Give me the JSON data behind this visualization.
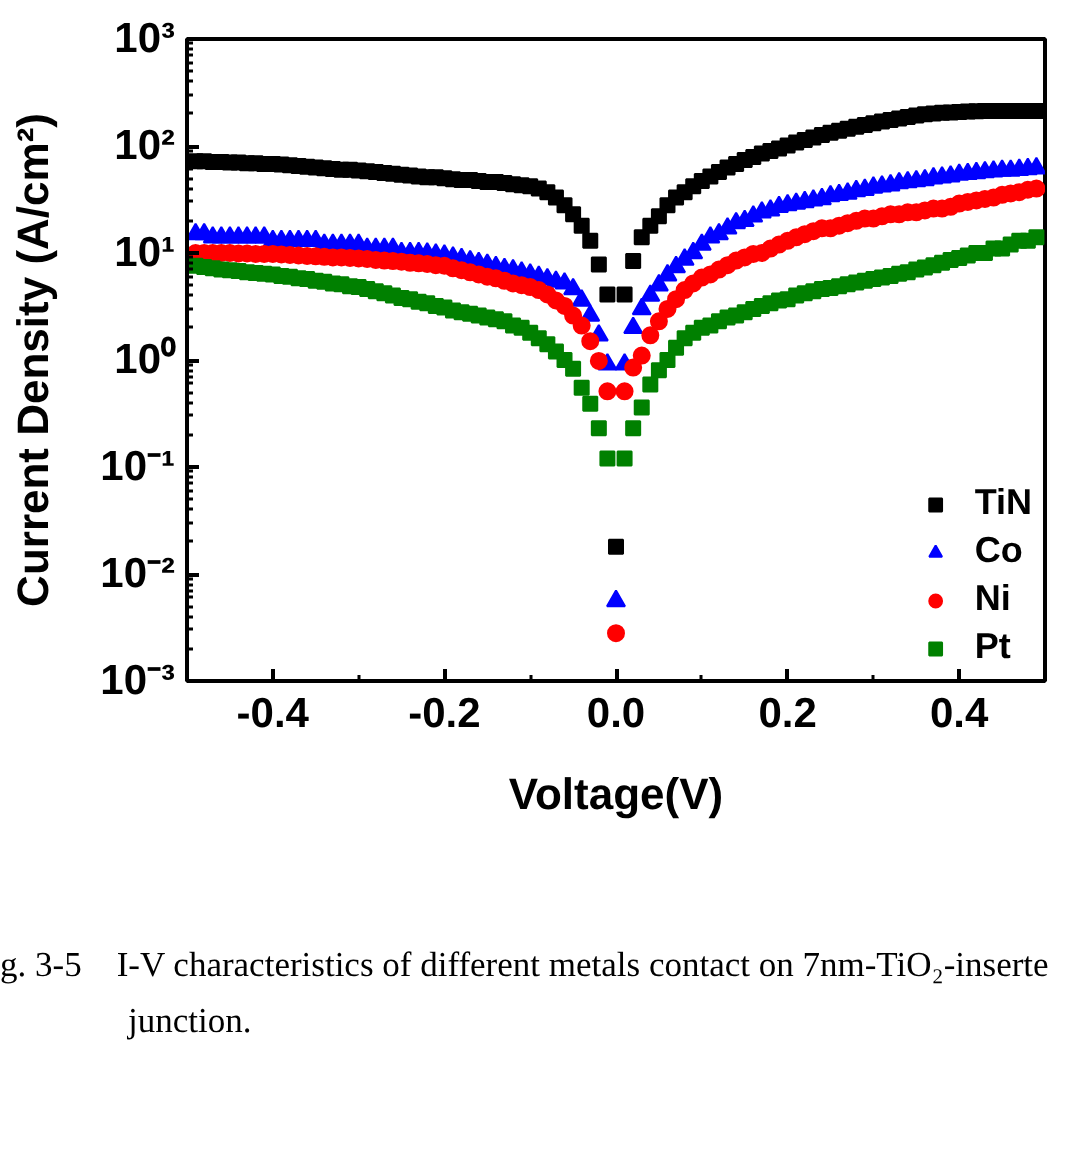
{
  "chart_data": {
    "type": "scatter",
    "xlabel": "Voltage(V)",
    "ylabel": "Current Density (A/cm²)",
    "xlim": [
      -0.5,
      0.5
    ],
    "xticks": [
      -0.4,
      -0.2,
      {
        "value": 0,
        "label": "0.0"
      },
      0.2,
      0.4
    ],
    "ylim": [
      0.001,
      1000
    ],
    "yticks": [
      {
        "value": 0.001,
        "label": "10⁻³"
      },
      {
        "value": 0.01,
        "label": "10⁻²"
      },
      {
        "value": 0.1,
        "label": "10⁻¹"
      },
      {
        "value": 1,
        "label": "10⁰"
      },
      {
        "value": 10,
        "label": "10¹"
      },
      {
        "value": 100,
        "label": "10²"
      },
      {
        "value": 1000,
        "label": "10³"
      }
    ],
    "log": "y",
    "legend": "bottom right",
    "x": [
      -0.49,
      -0.48,
      -0.47,
      -0.46,
      -0.45,
      -0.44,
      -0.43,
      -0.42,
      -0.41,
      -0.4,
      -0.39,
      -0.38,
      -0.37,
      -0.36,
      -0.35,
      -0.34,
      -0.33,
      -0.32,
      -0.31,
      -0.3,
      -0.29,
      -0.28,
      -0.27,
      -0.26,
      -0.25,
      -0.24,
      -0.23,
      -0.22,
      -0.21,
      -0.2,
      -0.19,
      -0.18,
      -0.17,
      -0.16,
      -0.15,
      -0.14,
      -0.13,
      -0.12,
      -0.11,
      -0.1,
      -0.09,
      -0.08,
      -0.07,
      -0.06,
      -0.05,
      -0.04,
      -0.03,
      -0.02,
      -0.01,
      0,
      0.01,
      0.02,
      0.03,
      0.04,
      0.05,
      0.06,
      0.07,
      0.08,
      0.09,
      0.1,
      0.11,
      0.12,
      0.13,
      0.14,
      0.15,
      0.16,
      0.17,
      0.18,
      0.19,
      0.2,
      0.21,
      0.22,
      0.23,
      0.24,
      0.25,
      0.26,
      0.27,
      0.28,
      0.29,
      0.3,
      0.31,
      0.32,
      0.33,
      0.34,
      0.35,
      0.36,
      0.37,
      0.38,
      0.39,
      0.4,
      0.41,
      0.42,
      0.43,
      0.44,
      0.45,
      0.46,
      0.47,
      0.48,
      0.49
    ],
    "series": [
      {
        "name": "TiN",
        "color": "#000000",
        "marker": "square",
        "values": [
          72,
          72,
          71,
          71,
          70,
          70,
          69,
          69,
          68,
          68,
          67,
          66,
          65,
          64,
          63,
          62,
          61,
          60,
          60,
          59,
          58,
          57,
          56,
          55,
          54,
          53,
          52,
          51,
          51,
          50,
          49,
          48,
          48,
          47,
          46,
          46,
          45,
          44,
          43,
          42,
          40,
          37,
          33,
          28,
          23,
          18,
          13,
          7.8,
          4.1,
          0.018,
          4.1,
          8.4,
          14,
          18,
          22,
          28,
          33,
          37,
          42,
          47,
          52,
          57,
          63,
          68,
          74,
          79,
          85,
          90,
          95,
          101,
          108,
          114,
          120,
          127,
          133,
          139,
          145,
          151,
          157,
          163,
          169,
          175,
          181,
          187,
          193,
          198,
          201,
          204,
          206,
          208,
          210,
          211,
          212,
          212,
          212,
          212,
          212,
          212,
          212
        ]
      },
      {
        "name": "Co",
        "color": "#0000ff",
        "marker": "triangle",
        "values": [
          15,
          15,
          14,
          14,
          14,
          14,
          14,
          14,
          14,
          13,
          13,
          13,
          13,
          13,
          13,
          12,
          12,
          12,
          12,
          12,
          11,
          11,
          11,
          11,
          10,
          10,
          10,
          9.9,
          9.7,
          9.5,
          9.1,
          8.8,
          8.4,
          8.1,
          7.8,
          7.4,
          7.1,
          6.9,
          6.6,
          6.3,
          6.0,
          5.7,
          5.4,
          5.2,
          4.6,
          3.6,
          2.6,
          1.7,
          0.91,
          0.0056,
          0.91,
          2.0,
          3.0,
          4.0,
          5.0,
          6.2,
          7.4,
          8.7,
          10,
          12,
          14,
          15,
          17,
          19,
          20,
          22,
          24,
          25,
          27,
          28,
          29,
          30,
          31,
          32,
          34,
          35,
          36,
          38,
          39,
          41,
          42,
          43,
          45,
          46,
          47,
          48,
          50,
          51,
          52,
          54,
          55,
          56,
          57,
          58,
          59,
          59,
          60,
          61,
          62
        ]
      },
      {
        "name": "Ni",
        "color": "#ff0000",
        "marker": "circle",
        "values": [
          10,
          10,
          10,
          10,
          10,
          9.9,
          9.9,
          9.8,
          9.8,
          9.8,
          9.7,
          9.6,
          9.5,
          9.4,
          9.3,
          9.2,
          9.1,
          9.1,
          9.0,
          8.9,
          8.8,
          8.6,
          8.5,
          8.4,
          8.3,
          8.1,
          8.0,
          7.9,
          7.7,
          7.6,
          7.2,
          6.9,
          6.6,
          6.3,
          6.0,
          5.8,
          5.5,
          5.2,
          5.0,
          4.8,
          4.5,
          4.1,
          3.6,
          3.2,
          2.6,
          2.1,
          1.5,
          0.98,
          0.51,
          0.0028,
          0.51,
          0.85,
          1.1,
          1.7,
          2.3,
          3.0,
          3.7,
          4.5,
          5.2,
          5.9,
          6.3,
          7.0,
          7.7,
          8.5,
          9.1,
          9.8,
          10,
          11,
          12,
          13,
          14,
          15,
          16,
          17,
          17,
          18,
          19,
          20,
          21,
          21,
          22,
          23,
          23,
          24,
          24,
          25,
          26,
          26,
          27,
          29,
          30,
          31,
          32,
          33,
          35,
          36,
          37,
          39,
          40
        ]
      },
      {
        "name": "Pt",
        "color": "#008000",
        "marker": "square",
        "values": [
          7.6,
          7.4,
          7.2,
          7.0,
          6.9,
          6.8,
          6.6,
          6.5,
          6.4,
          6.3,
          6.1,
          6.0,
          5.8,
          5.7,
          5.5,
          5.4,
          5.2,
          5.1,
          4.9,
          4.8,
          4.6,
          4.4,
          4.2,
          4.0,
          3.8,
          3.7,
          3.5,
          3.4,
          3.2,
          3.1,
          2.9,
          2.8,
          2.7,
          2.6,
          2.5,
          2.4,
          2.3,
          2.1,
          2.0,
          1.8,
          1.6,
          1.4,
          1.2,
          1.0,
          0.83,
          0.55,
          0.39,
          0.23,
          0.12,
          null,
          0.12,
          0.23,
          0.36,
          0.59,
          0.8,
          1.0,
          1.3,
          1.6,
          1.8,
          2.0,
          2.1,
          2.3,
          2.5,
          2.6,
          2.8,
          3.0,
          3.2,
          3.4,
          3.6,
          3.7,
          4.0,
          4.2,
          4.4,
          4.6,
          4.7,
          4.9,
          5.1,
          5.3,
          5.5,
          5.7,
          5.9,
          6.1,
          6.4,
          6.6,
          7.0,
          7.3,
          7.7,
          8.1,
          8.6,
          9.0,
          9.5,
          10,
          10,
          11,
          11,
          12,
          13,
          13,
          14
        ]
      }
    ],
    "annotations": [
      "g. 3-5    I-V characteristics of different metals contact on 7nm-TiO₂-inserte",
      "junction."
    ]
  }
}
